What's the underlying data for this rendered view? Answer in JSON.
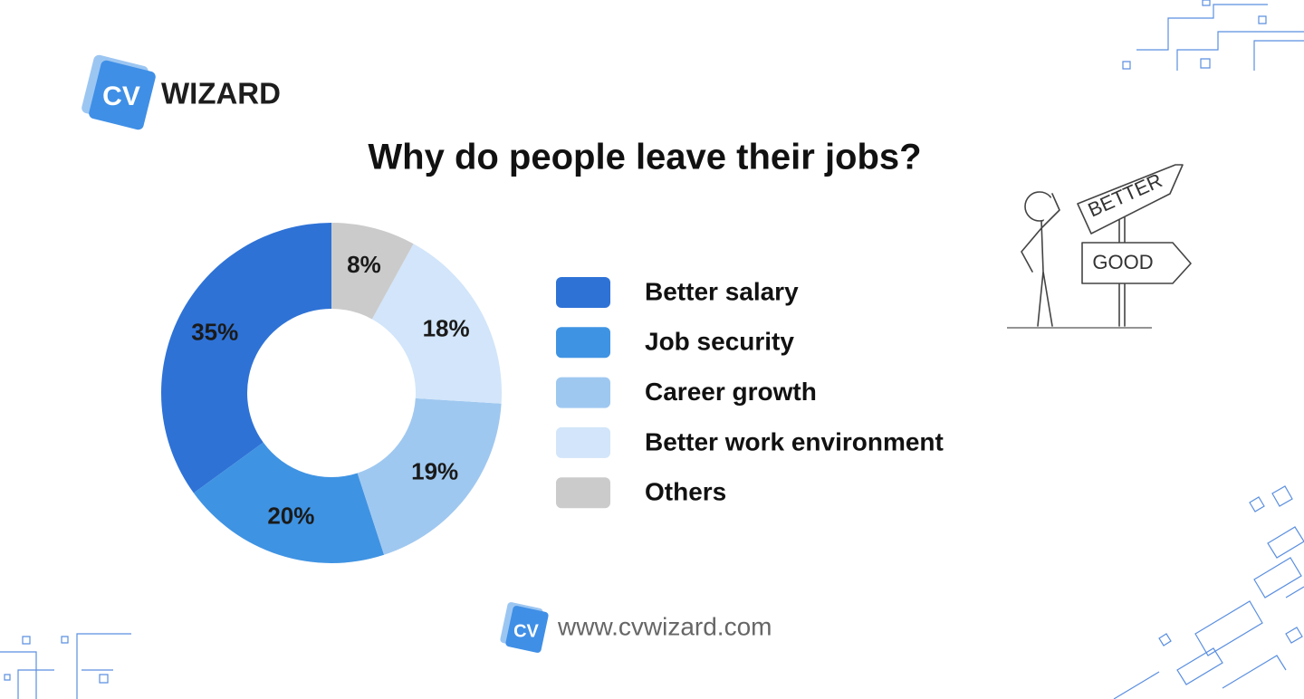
{
  "chart_data": {
    "type": "pie",
    "donut": true,
    "title": "Why do people leave their jobs?",
    "categories": [
      "Better salary",
      "Job security",
      "Career growth",
      "Better work environment",
      "Others"
    ],
    "values": [
      35,
      20,
      19,
      18,
      8
    ],
    "value_labels": [
      "35%",
      "20%",
      "19%",
      "18%",
      "8%"
    ],
    "colors": [
      "#2e72d6",
      "#3f93e3",
      "#9fc8f0",
      "#d2e5fa",
      "#cbcbcb"
    ],
    "legend": "right"
  },
  "branding": {
    "logo_mark": "CV",
    "logo_text": "WIZARD",
    "footer_mark": "CV",
    "website": "www.cvwizard.com"
  },
  "illustration": {
    "signs": [
      "BETTER",
      "GOOD"
    ]
  }
}
